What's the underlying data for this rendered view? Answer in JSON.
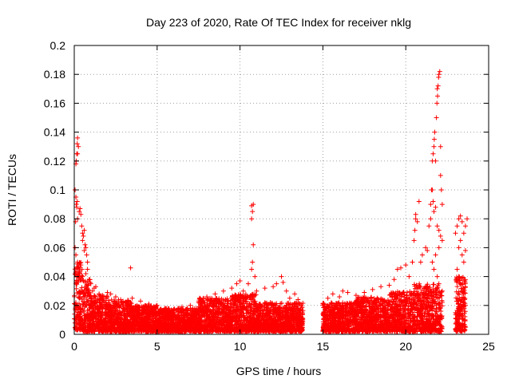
{
  "chart_data": {
    "type": "scatter",
    "title": "Day 223 of 2020, Rate Of TEC Index for receiver nklg",
    "xlabel": "GPS time / hours",
    "ylabel": "ROTI / TECUs",
    "xlim": [
      0,
      25
    ],
    "ylim": [
      0,
      0.2
    ],
    "x_ticks": [
      "0",
      "5",
      "10",
      "15",
      "20",
      "25"
    ],
    "y_ticks": [
      "0",
      "0.02",
      "0.04",
      "0.06",
      "0.08",
      "0.1",
      "0.12",
      "0.14",
      "0.16",
      "0.18",
      "0.2"
    ],
    "grid": true,
    "marker": "+",
    "series": [
      {
        "color": "#ff0000",
        "points": [
          [
            0.05,
            0.1
          ],
          [
            0.1,
            0.095
          ],
          [
            0.12,
            0.09
          ],
          [
            0.15,
            0.088
          ],
          [
            0.18,
            0.092
          ],
          [
            0.1,
            0.118
          ],
          [
            0.12,
            0.12
          ],
          [
            0.15,
            0.125
          ],
          [
            0.2,
            0.125
          ],
          [
            0.18,
            0.132
          ],
          [
            0.2,
            0.136
          ],
          [
            0.25,
            0.13
          ],
          [
            0.08,
            0.078
          ],
          [
            0.2,
            0.08
          ],
          [
            0.3,
            0.085
          ],
          [
            0.35,
            0.087
          ],
          [
            0.4,
            0.083
          ],
          [
            0.45,
            0.075
          ],
          [
            0.5,
            0.07
          ],
          [
            0.55,
            0.068
          ],
          [
            0.6,
            0.072
          ],
          [
            0.5,
            0.065
          ],
          [
            0.7,
            0.06
          ],
          [
            0.75,
            0.055
          ],
          [
            0.8,
            0.05
          ],
          [
            0.6,
            0.058
          ],
          [
            0.65,
            0.062
          ],
          [
            0.05,
            0.06
          ],
          [
            0.1,
            0.055
          ],
          [
            0.2,
            0.05
          ],
          [
            0.3,
            0.045
          ],
          [
            0.4,
            0.048
          ],
          [
            0.5,
            0.04
          ],
          [
            0.7,
            0.042
          ],
          [
            0.8,
            0.045
          ],
          [
            0.9,
            0.038
          ],
          [
            1.0,
            0.035
          ],
          [
            1.1,
            0.03
          ],
          [
            1.2,
            0.032
          ],
          [
            1.3,
            0.033
          ],
          [
            1.5,
            0.028
          ],
          [
            1.7,
            0.027
          ],
          [
            2.0,
            0.029
          ],
          [
            2.2,
            0.028
          ],
          [
            2.5,
            0.026
          ],
          [
            2.8,
            0.024
          ],
          [
            3.2,
            0.02
          ],
          [
            3.4,
            0.046
          ],
          [
            3.5,
            0.025
          ],
          [
            4.0,
            0.023
          ],
          [
            4.5,
            0.021
          ],
          [
            5.0,
            0.02
          ],
          [
            5.5,
            0.018
          ],
          [
            6.0,
            0.017
          ],
          [
            6.5,
            0.019
          ],
          [
            7.0,
            0.02
          ],
          [
            7.5,
            0.022
          ],
          [
            7.8,
            0.025
          ],
          [
            8.0,
            0.026
          ],
          [
            8.5,
            0.028
          ],
          [
            9.0,
            0.03
          ],
          [
            9.5,
            0.032
          ],
          [
            9.8,
            0.035
          ],
          [
            10.0,
            0.037
          ],
          [
            10.2,
            0.03
          ],
          [
            10.5,
            0.035
          ],
          [
            10.7,
            0.045
          ],
          [
            10.75,
            0.05
          ],
          [
            10.8,
            0.062
          ],
          [
            10.7,
            0.08
          ],
          [
            10.75,
            0.085
          ],
          [
            10.7,
            0.089
          ],
          [
            10.8,
            0.09
          ],
          [
            10.9,
            0.04
          ],
          [
            11.0,
            0.03
          ],
          [
            11.5,
            0.032
          ],
          [
            12.0,
            0.033
          ],
          [
            12.2,
            0.035
          ],
          [
            12.5,
            0.04
          ],
          [
            12.6,
            0.036
          ],
          [
            12.8,
            0.03
          ],
          [
            13.0,
            0.025
          ],
          [
            13.3,
            0.028
          ],
          [
            13.5,
            0.024
          ],
          [
            13.7,
            0.02
          ],
          [
            15.0,
            0.02
          ],
          [
            15.3,
            0.025
          ],
          [
            15.6,
            0.028
          ],
          [
            16.0,
            0.026
          ],
          [
            16.2,
            0.03
          ],
          [
            16.5,
            0.029
          ],
          [
            17.0,
            0.027
          ],
          [
            17.5,
            0.029
          ],
          [
            18.0,
            0.031
          ],
          [
            18.5,
            0.033
          ],
          [
            19.0,
            0.034
          ],
          [
            19.3,
            0.038
          ],
          [
            19.5,
            0.045
          ],
          [
            19.7,
            0.046
          ],
          [
            20.0,
            0.048
          ],
          [
            20.2,
            0.04
          ],
          [
            20.4,
            0.05
          ],
          [
            20.5,
            0.065
          ],
          [
            20.55,
            0.072
          ],
          [
            20.6,
            0.08
          ],
          [
            20.6,
            0.083
          ],
          [
            20.7,
            0.078
          ],
          [
            20.8,
            0.092
          ],
          [
            20.9,
            0.05
          ],
          [
            21.0,
            0.055
          ],
          [
            21.2,
            0.06
          ],
          [
            21.3,
            0.058
          ],
          [
            21.4,
            0.075
          ],
          [
            21.5,
            0.08
          ],
          [
            21.5,
            0.09
          ],
          [
            21.55,
            0.1
          ],
          [
            21.6,
            0.1
          ],
          [
            21.65,
            0.092
          ],
          [
            21.7,
            0.085
          ],
          [
            21.6,
            0.12
          ],
          [
            21.65,
            0.125
          ],
          [
            21.7,
            0.13
          ],
          [
            21.72,
            0.135
          ],
          [
            21.75,
            0.14
          ],
          [
            21.8,
            0.12
          ],
          [
            21.85,
            0.15
          ],
          [
            21.88,
            0.16
          ],
          [
            21.9,
            0.17
          ],
          [
            21.92,
            0.165
          ],
          [
            21.95,
            0.172
          ],
          [
            21.98,
            0.178
          ],
          [
            22.0,
            0.18
          ],
          [
            22.05,
            0.182
          ],
          [
            22.1,
            0.13
          ],
          [
            22.1,
            0.11
          ],
          [
            22.15,
            0.1
          ],
          [
            22.2,
            0.09
          ],
          [
            21.8,
            0.088
          ],
          [
            21.9,
            0.075
          ],
          [
            22.0,
            0.072
          ],
          [
            22.1,
            0.068
          ],
          [
            22.2,
            0.065
          ],
          [
            22.0,
            0.06
          ],
          [
            21.7,
            0.045
          ],
          [
            21.6,
            0.05
          ],
          [
            21.8,
            0.055
          ],
          [
            21.9,
            0.04
          ],
          [
            22.0,
            0.035
          ],
          [
            22.2,
            0.03
          ],
          [
            23.0,
            0.07
          ],
          [
            23.1,
            0.075
          ],
          [
            23.2,
            0.08
          ],
          [
            23.3,
            0.082
          ],
          [
            23.4,
            0.078
          ],
          [
            23.5,
            0.07
          ],
          [
            23.6,
            0.075
          ],
          [
            23.7,
            0.08
          ],
          [
            23.2,
            0.06
          ],
          [
            23.3,
            0.065
          ],
          [
            23.4,
            0.055
          ],
          [
            23.5,
            0.05
          ],
          [
            23.6,
            0.058
          ],
          [
            23.1,
            0.045
          ],
          [
            23.2,
            0.04
          ],
          [
            23.3,
            0.035
          ],
          [
            23.4,
            0.03
          ],
          [
            23.5,
            0.025
          ],
          [
            23.6,
            0.02
          ],
          [
            23.0,
            0.015
          ],
          [
            23.1,
            0.01
          ]
        ]
      }
    ],
    "band": {
      "color": "#ff0000",
      "segments": [
        {
          "x_from": 0,
          "x_to": 0.5,
          "y_min": 0.003,
          "y_max": 0.05
        },
        {
          "x_from": 0.5,
          "x_to": 1.0,
          "y_min": 0.002,
          "y_max": 0.038
        },
        {
          "x_from": 1.0,
          "x_to": 2.0,
          "y_min": 0.002,
          "y_max": 0.028
        },
        {
          "x_from": 2.0,
          "x_to": 3.5,
          "y_min": 0.002,
          "y_max": 0.024
        },
        {
          "x_from": 3.5,
          "x_to": 5.0,
          "y_min": 0.002,
          "y_max": 0.02
        },
        {
          "x_from": 5.0,
          "x_to": 7.5,
          "y_min": 0.002,
          "y_max": 0.018
        },
        {
          "x_from": 7.5,
          "x_to": 9.5,
          "y_min": 0.002,
          "y_max": 0.025
        },
        {
          "x_from": 9.5,
          "x_to": 11.0,
          "y_min": 0.002,
          "y_max": 0.028
        },
        {
          "x_from": 11.0,
          "x_to": 13.8,
          "y_min": 0.002,
          "y_max": 0.022
        },
        {
          "x_from": 15.0,
          "x_to": 17.0,
          "y_min": 0.002,
          "y_max": 0.022
        },
        {
          "x_from": 17.0,
          "x_to": 19.0,
          "y_min": 0.002,
          "y_max": 0.026
        },
        {
          "x_from": 19.0,
          "x_to": 20.5,
          "y_min": 0.002,
          "y_max": 0.03
        },
        {
          "x_from": 20.5,
          "x_to": 22.0,
          "y_min": 0.002,
          "y_max": 0.035
        },
        {
          "x_from": 22.0,
          "x_to": 22.2,
          "y_min": 0.002,
          "y_max": 0.03
        },
        {
          "x_from": 23.0,
          "x_to": 23.6,
          "y_min": 0.002,
          "y_max": 0.04
        }
      ]
    }
  }
}
